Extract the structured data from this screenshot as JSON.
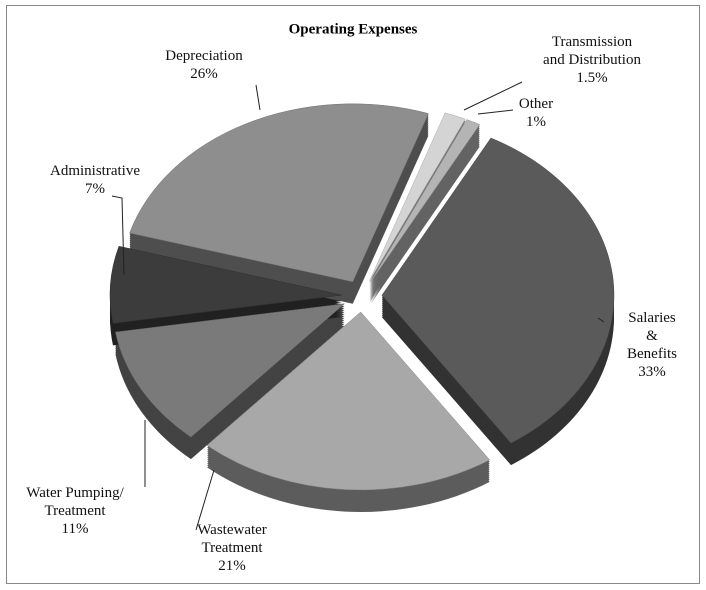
{
  "chart_data": {
    "type": "pie",
    "title": "Operating Expenses",
    "categories": [
      "Salaries &\nBenefits",
      "Wastewater\nTreatment",
      "Water Pumping/\nTreatment",
      "Administrative",
      "Depreciation",
      "Transmission\nand Distribution",
      "Other"
    ],
    "values": [
      33,
      21,
      11,
      7,
      26,
      1.5,
      1
    ],
    "value_labels": [
      "33%",
      "21%",
      "11%",
      "7%",
      "26%",
      "1.5%",
      "1%"
    ],
    "colors": [
      "#5a5a5a",
      "#a8a8a8",
      "#7a7a7a",
      "#3c3c3c",
      "#8e8e8e",
      "#d4d4d4",
      "#b4b4b4"
    ]
  }
}
